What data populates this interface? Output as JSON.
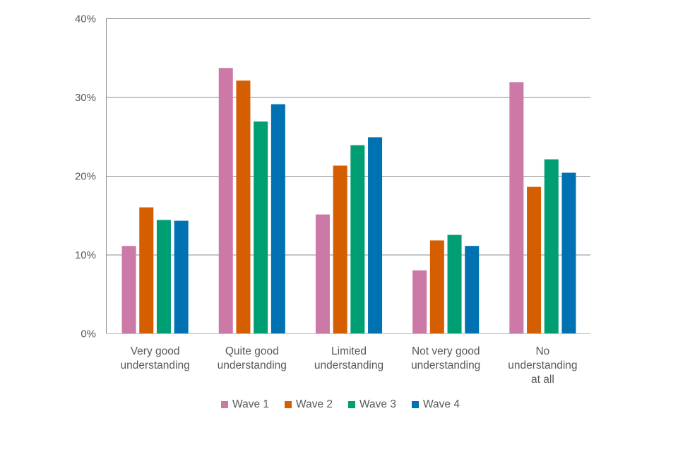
{
  "chart_data": {
    "type": "bar",
    "categories": [
      "Very good understanding",
      "Quite good understanding",
      "Limited understanding",
      "Not very good understanding",
      "No understanding at all"
    ],
    "series": [
      {
        "name": "Wave 1",
        "color": "#CC79A7",
        "values": [
          11.1,
          33.7,
          15.1,
          8.0,
          31.9
        ]
      },
      {
        "name": "Wave 2",
        "color": "#D55E00",
        "values": [
          16.0,
          32.1,
          21.3,
          11.8,
          18.6
        ]
      },
      {
        "name": "Wave 3",
        "color": "#009E73",
        "values": [
          14.4,
          26.9,
          23.9,
          12.5,
          22.1
        ]
      },
      {
        "name": "Wave 4",
        "color": "#0072B2",
        "values": [
          14.3,
          29.1,
          24.9,
          11.1,
          20.4
        ]
      }
    ],
    "yticks": [
      "0%",
      "10%",
      "20%",
      "30%",
      "40%"
    ],
    "ylim": [
      0,
      40
    ],
    "grid": true,
    "legend": "bottom"
  }
}
